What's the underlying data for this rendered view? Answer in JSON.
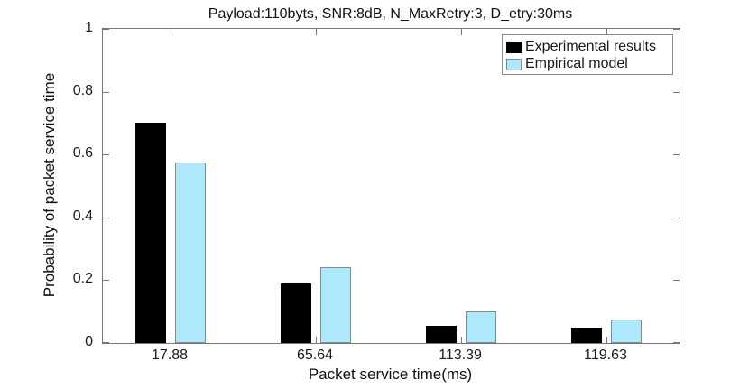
{
  "title": "Payload:110byts, SNR:8dB, N_MaxRetry:3, D_etry:30ms",
  "chart_data": {
    "type": "bar",
    "title": "Payload:110byts, SNR:8dB, N_MaxRetry:3, D_etry:30ms",
    "xlabel": "Packet service time(ms)",
    "ylabel": "Probability of packet service time",
    "categories": [
      "17.88",
      "65.64",
      "113.39",
      "119.63"
    ],
    "series": [
      {
        "name": "Experimental results",
        "color": "#000000",
        "edge_color": "#000000",
        "values": [
          0.7,
          0.19,
          0.055,
          0.05
        ]
      },
      {
        "name": "Empirical model",
        "color": "#ADE8FB",
        "edge_color": "#7f8c91",
        "values": [
          0.575,
          0.24,
          0.1,
          0.075
        ]
      }
    ],
    "ylim": [
      0,
      1
    ],
    "yticks": [
      0,
      0.2,
      0.4,
      0.6,
      0.8,
      1
    ],
    "ytick_labels": [
      "0",
      "0.2",
      "0.4",
      "0.6",
      "0.8",
      "1"
    ],
    "legend_position": "top-right",
    "grid": false,
    "axis_color": "#777777"
  }
}
